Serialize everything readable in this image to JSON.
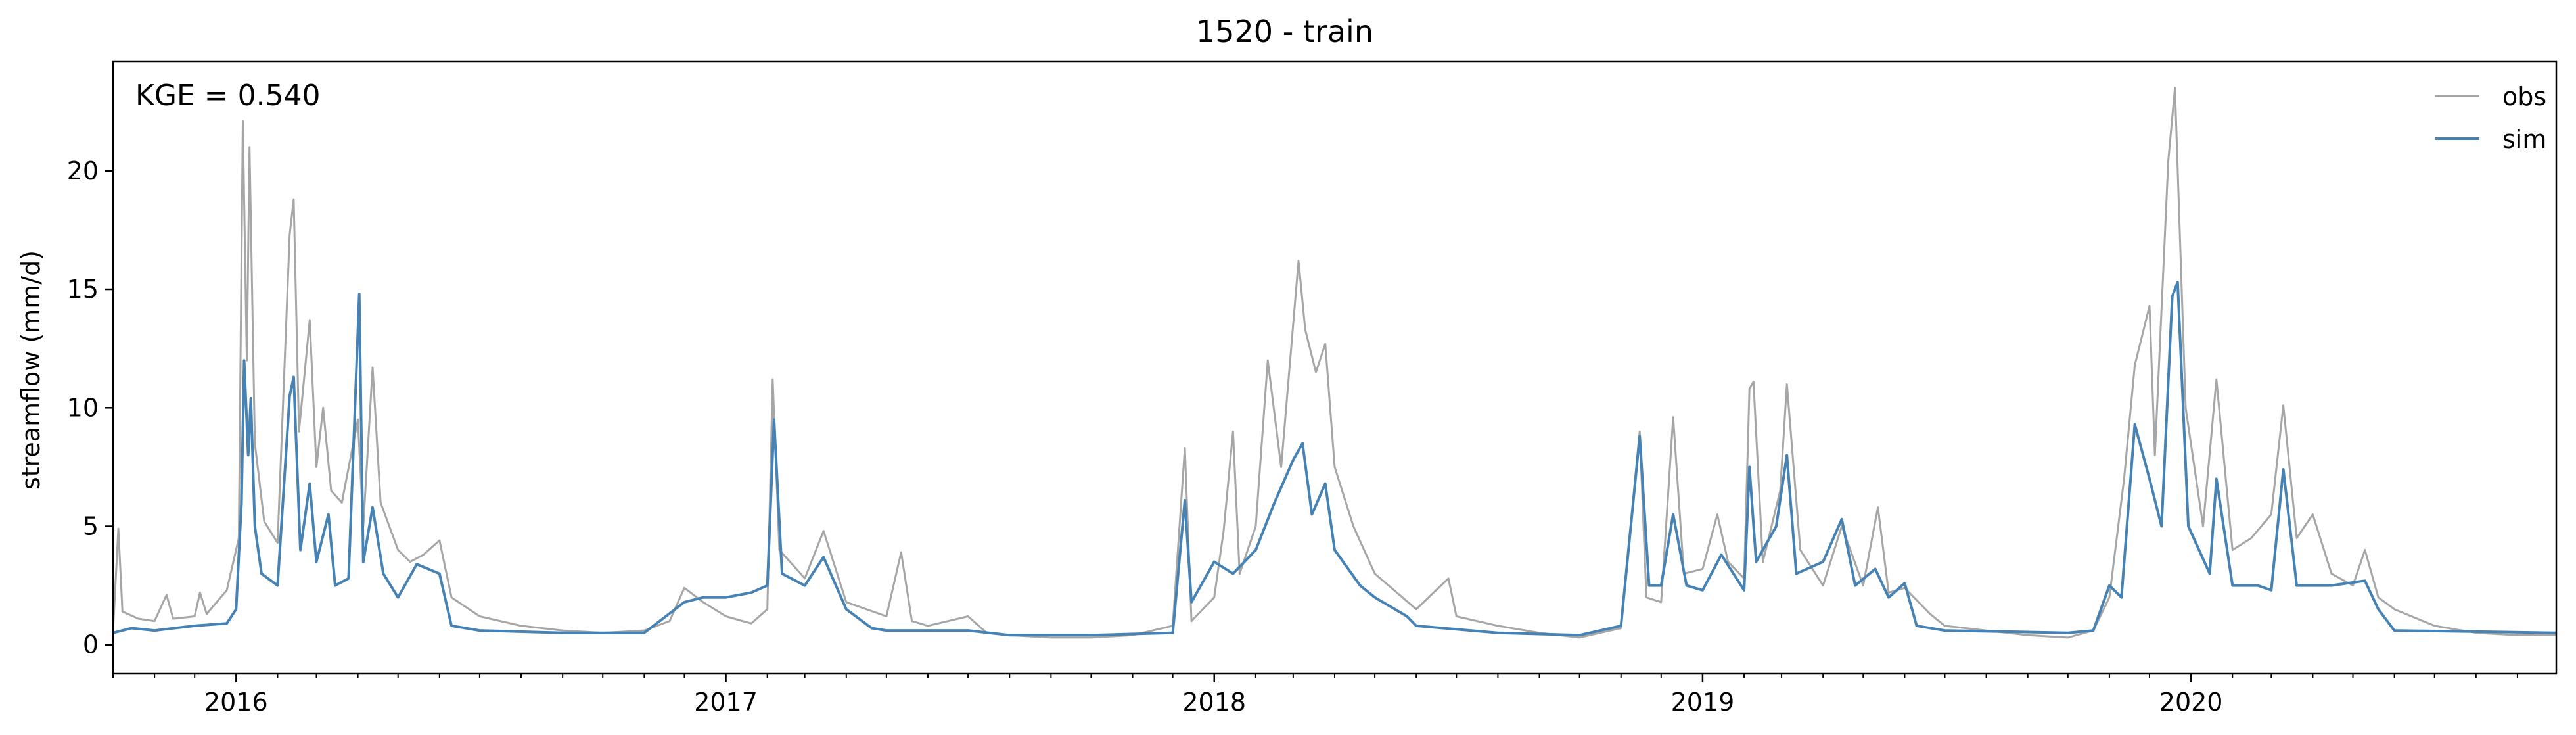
{
  "chart_data": {
    "type": "line",
    "title": "1520 - train",
    "xlabel": "",
    "ylabel": "streamflow (mm/d)",
    "annotation": "KGE = 0.540",
    "legend_position": "top-right",
    "grid": false,
    "xlim": [
      "2015-10-01",
      "2020-09-30"
    ],
    "ylim": [
      -1.2,
      24.6
    ],
    "yticks": [
      0,
      5,
      10,
      15,
      20
    ],
    "xticks": [
      {
        "date": "2016-01-01",
        "label": "2016"
      },
      {
        "date": "2017-01-01",
        "label": "2017"
      },
      {
        "date": "2018-01-01",
        "label": "2018"
      },
      {
        "date": "2019-01-01",
        "label": "2019"
      },
      {
        "date": "2020-01-01",
        "label": "2020"
      }
    ],
    "series": [
      {
        "name": "obs",
        "color": "#a6a6a6",
        "points": [
          [
            "2015-10-01",
            0.6
          ],
          [
            "2015-10-05",
            4.9
          ],
          [
            "2015-10-08",
            1.4
          ],
          [
            "2015-10-20",
            1.1
          ],
          [
            "2015-11-01",
            1.0
          ],
          [
            "2015-11-10",
            2.1
          ],
          [
            "2015-11-15",
            1.1
          ],
          [
            "2015-12-01",
            1.2
          ],
          [
            "2015-12-05",
            2.2
          ],
          [
            "2015-12-10",
            1.3
          ],
          [
            "2015-12-25",
            2.3
          ],
          [
            "2016-01-03",
            4.5
          ],
          [
            "2016-01-06",
            22.1
          ],
          [
            "2016-01-09",
            12.0
          ],
          [
            "2016-01-11",
            21.0
          ],
          [
            "2016-01-15",
            8.5
          ],
          [
            "2016-01-22",
            5.2
          ],
          [
            "2016-02-01",
            4.3
          ],
          [
            "2016-02-10",
            17.3
          ],
          [
            "2016-02-13",
            18.8
          ],
          [
            "2016-02-17",
            9.0
          ],
          [
            "2016-02-25",
            13.7
          ],
          [
            "2016-03-01",
            7.5
          ],
          [
            "2016-03-06",
            10.0
          ],
          [
            "2016-03-12",
            6.5
          ],
          [
            "2016-03-20",
            6.0
          ],
          [
            "2016-04-01",
            9.5
          ],
          [
            "2016-04-05",
            5.0
          ],
          [
            "2016-04-12",
            11.7
          ],
          [
            "2016-04-18",
            6.0
          ],
          [
            "2016-05-01",
            4.0
          ],
          [
            "2016-05-10",
            3.5
          ],
          [
            "2016-05-20",
            3.8
          ],
          [
            "2016-06-01",
            4.4
          ],
          [
            "2016-06-10",
            2.0
          ],
          [
            "2016-07-01",
            1.2
          ],
          [
            "2016-08-01",
            0.8
          ],
          [
            "2016-09-01",
            0.6
          ],
          [
            "2016-10-01",
            0.5
          ],
          [
            "2016-11-01",
            0.6
          ],
          [
            "2016-11-20",
            1.0
          ],
          [
            "2016-12-01",
            2.4
          ],
          [
            "2016-12-15",
            1.8
          ],
          [
            "2017-01-01",
            1.2
          ],
          [
            "2017-01-20",
            0.9
          ],
          [
            "2017-02-01",
            1.5
          ],
          [
            "2017-02-05",
            11.2
          ],
          [
            "2017-02-10",
            4.0
          ],
          [
            "2017-03-01",
            2.8
          ],
          [
            "2017-03-15",
            4.8
          ],
          [
            "2017-04-01",
            1.8
          ],
          [
            "2017-05-01",
            1.2
          ],
          [
            "2017-05-12",
            3.9
          ],
          [
            "2017-05-20",
            1.0
          ],
          [
            "2017-06-01",
            0.8
          ],
          [
            "2017-07-01",
            1.2
          ],
          [
            "2017-07-15",
            0.5
          ],
          [
            "2017-08-01",
            0.4
          ],
          [
            "2017-09-01",
            0.3
          ],
          [
            "2017-10-01",
            0.3
          ],
          [
            "2017-11-01",
            0.4
          ],
          [
            "2017-12-01",
            0.8
          ],
          [
            "2017-12-10",
            8.3
          ],
          [
            "2017-12-15",
            1.0
          ],
          [
            "2018-01-01",
            2.0
          ],
          [
            "2018-01-08",
            4.8
          ],
          [
            "2018-01-15",
            9.0
          ],
          [
            "2018-01-20",
            3.0
          ],
          [
            "2018-02-01",
            5.0
          ],
          [
            "2018-02-10",
            12.0
          ],
          [
            "2018-02-20",
            7.5
          ],
          [
            "2018-03-05",
            16.2
          ],
          [
            "2018-03-10",
            13.3
          ],
          [
            "2018-03-18",
            11.5
          ],
          [
            "2018-03-25",
            12.7
          ],
          [
            "2018-04-01",
            7.5
          ],
          [
            "2018-04-15",
            5.0
          ],
          [
            "2018-05-01",
            3.0
          ],
          [
            "2018-06-01",
            1.5
          ],
          [
            "2018-06-25",
            2.8
          ],
          [
            "2018-07-01",
            1.2
          ],
          [
            "2018-08-01",
            0.8
          ],
          [
            "2018-09-01",
            0.5
          ],
          [
            "2018-10-01",
            0.3
          ],
          [
            "2018-11-01",
            0.7
          ],
          [
            "2018-11-15",
            9.0
          ],
          [
            "2018-11-20",
            2.0
          ],
          [
            "2018-12-01",
            1.8
          ],
          [
            "2018-12-10",
            9.6
          ],
          [
            "2018-12-18",
            3.0
          ],
          [
            "2019-01-01",
            3.2
          ],
          [
            "2019-01-12",
            5.5
          ],
          [
            "2019-01-20",
            3.5
          ],
          [
            "2019-02-01",
            2.8
          ],
          [
            "2019-02-05",
            10.8
          ],
          [
            "2019-02-08",
            11.1
          ],
          [
            "2019-02-15",
            3.5
          ],
          [
            "2019-02-28",
            6.5
          ],
          [
            "2019-03-05",
            11.0
          ],
          [
            "2019-03-15",
            4.0
          ],
          [
            "2019-04-01",
            2.5
          ],
          [
            "2019-04-15",
            5.0
          ],
          [
            "2019-05-01",
            2.5
          ],
          [
            "2019-05-12",
            5.8
          ],
          [
            "2019-05-20",
            2.2
          ],
          [
            "2019-06-01",
            2.4
          ],
          [
            "2019-06-20",
            1.3
          ],
          [
            "2019-07-01",
            0.8
          ],
          [
            "2019-08-01",
            0.6
          ],
          [
            "2019-09-01",
            0.4
          ],
          [
            "2019-10-01",
            0.3
          ],
          [
            "2019-10-20",
            0.6
          ],
          [
            "2019-11-01",
            2.0
          ],
          [
            "2019-11-12",
            7.0
          ],
          [
            "2019-11-20",
            11.8
          ],
          [
            "2019-12-01",
            14.3
          ],
          [
            "2019-12-05",
            8.0
          ],
          [
            "2019-12-15",
            20.4
          ],
          [
            "2019-12-20",
            23.5
          ],
          [
            "2019-12-28",
            10.0
          ],
          [
            "2020-01-10",
            5.0
          ],
          [
            "2020-01-20",
            11.2
          ],
          [
            "2020-02-01",
            4.0
          ],
          [
            "2020-02-15",
            4.5
          ],
          [
            "2020-03-01",
            5.5
          ],
          [
            "2020-03-10",
            10.1
          ],
          [
            "2020-03-20",
            4.5
          ],
          [
            "2020-04-01",
            5.5
          ],
          [
            "2020-04-15",
            3.0
          ],
          [
            "2020-05-01",
            2.5
          ],
          [
            "2020-05-10",
            4.0
          ],
          [
            "2020-05-20",
            2.0
          ],
          [
            "2020-06-01",
            1.5
          ],
          [
            "2020-07-01",
            0.8
          ],
          [
            "2020-08-01",
            0.5
          ],
          [
            "2020-09-01",
            0.4
          ],
          [
            "2020-09-30",
            0.4
          ]
        ]
      },
      {
        "name": "sim",
        "color": "#4682b4",
        "points": [
          [
            "2015-10-01",
            0.5
          ],
          [
            "2015-10-15",
            0.7
          ],
          [
            "2015-11-01",
            0.6
          ],
          [
            "2015-12-01",
            0.8
          ],
          [
            "2015-12-25",
            0.9
          ],
          [
            "2016-01-01",
            1.5
          ],
          [
            "2016-01-05",
            6.0
          ],
          [
            "2016-01-07",
            12.0
          ],
          [
            "2016-01-10",
            8.0
          ],
          [
            "2016-01-12",
            10.4
          ],
          [
            "2016-01-15",
            5.0
          ],
          [
            "2016-01-20",
            3.0
          ],
          [
            "2016-02-01",
            2.5
          ],
          [
            "2016-02-10",
            10.5
          ],
          [
            "2016-02-13",
            11.3
          ],
          [
            "2016-02-18",
            4.0
          ],
          [
            "2016-02-25",
            6.8
          ],
          [
            "2016-03-01",
            3.5
          ],
          [
            "2016-03-10",
            5.5
          ],
          [
            "2016-03-15",
            2.5
          ],
          [
            "2016-03-25",
            2.8
          ],
          [
            "2016-04-02",
            14.8
          ],
          [
            "2016-04-05",
            3.5
          ],
          [
            "2016-04-12",
            5.8
          ],
          [
            "2016-04-20",
            3.0
          ],
          [
            "2016-05-01",
            2.0
          ],
          [
            "2016-05-15",
            3.4
          ],
          [
            "2016-06-01",
            3.0
          ],
          [
            "2016-06-10",
            0.8
          ],
          [
            "2016-07-01",
            0.6
          ],
          [
            "2016-09-01",
            0.5
          ],
          [
            "2016-10-01",
            0.5
          ],
          [
            "2016-11-01",
            0.5
          ],
          [
            "2016-12-01",
            1.8
          ],
          [
            "2016-12-15",
            2.0
          ],
          [
            "2017-01-01",
            2.0
          ],
          [
            "2017-01-20",
            2.2
          ],
          [
            "2017-02-01",
            2.5
          ],
          [
            "2017-02-06",
            9.5
          ],
          [
            "2017-02-12",
            3.0
          ],
          [
            "2017-03-01",
            2.5
          ],
          [
            "2017-03-15",
            3.7
          ],
          [
            "2017-04-01",
            1.5
          ],
          [
            "2017-04-20",
            0.7
          ],
          [
            "2017-05-01",
            0.6
          ],
          [
            "2017-07-01",
            0.6
          ],
          [
            "2017-08-01",
            0.4
          ],
          [
            "2017-10-01",
            0.4
          ],
          [
            "2017-12-01",
            0.5
          ],
          [
            "2017-12-10",
            6.1
          ],
          [
            "2017-12-15",
            1.8
          ],
          [
            "2018-01-01",
            3.5
          ],
          [
            "2018-01-15",
            3.0
          ],
          [
            "2018-02-01",
            4.0
          ],
          [
            "2018-02-15",
            6.0
          ],
          [
            "2018-03-01",
            7.8
          ],
          [
            "2018-03-08",
            8.5
          ],
          [
            "2018-03-15",
            5.5
          ],
          [
            "2018-03-25",
            6.8
          ],
          [
            "2018-04-01",
            4.0
          ],
          [
            "2018-04-20",
            2.5
          ],
          [
            "2018-05-01",
            2.0
          ],
          [
            "2018-05-25",
            1.2
          ],
          [
            "2018-06-01",
            0.8
          ],
          [
            "2018-08-01",
            0.5
          ],
          [
            "2018-10-01",
            0.4
          ],
          [
            "2018-11-01",
            0.8
          ],
          [
            "2018-11-15",
            8.8
          ],
          [
            "2018-11-22",
            2.5
          ],
          [
            "2018-12-01",
            2.5
          ],
          [
            "2018-12-10",
            5.5
          ],
          [
            "2018-12-20",
            2.5
          ],
          [
            "2019-01-01",
            2.3
          ],
          [
            "2019-01-15",
            3.8
          ],
          [
            "2019-02-01",
            2.3
          ],
          [
            "2019-02-05",
            7.5
          ],
          [
            "2019-02-10",
            3.5
          ],
          [
            "2019-02-25",
            5.0
          ],
          [
            "2019-03-05",
            8.0
          ],
          [
            "2019-03-12",
            3.0
          ],
          [
            "2019-04-01",
            3.5
          ],
          [
            "2019-04-15",
            5.3
          ],
          [
            "2019-04-25",
            2.5
          ],
          [
            "2019-05-10",
            3.2
          ],
          [
            "2019-05-20",
            2.0
          ],
          [
            "2019-06-01",
            2.6
          ],
          [
            "2019-06-10",
            0.8
          ],
          [
            "2019-07-01",
            0.6
          ],
          [
            "2019-10-01",
            0.5
          ],
          [
            "2019-10-20",
            0.6
          ],
          [
            "2019-11-01",
            2.5
          ],
          [
            "2019-11-10",
            2.0
          ],
          [
            "2019-11-20",
            9.3
          ],
          [
            "2019-12-01",
            7.0
          ],
          [
            "2019-12-10",
            5.0
          ],
          [
            "2019-12-18",
            14.7
          ],
          [
            "2019-12-22",
            15.3
          ],
          [
            "2019-12-30",
            5.0
          ],
          [
            "2020-01-15",
            3.0
          ],
          [
            "2020-01-20",
            7.0
          ],
          [
            "2020-02-01",
            2.5
          ],
          [
            "2020-02-20",
            2.5
          ],
          [
            "2020-03-01",
            2.3
          ],
          [
            "2020-03-10",
            7.4
          ],
          [
            "2020-03-20",
            2.5
          ],
          [
            "2020-04-15",
            2.5
          ],
          [
            "2020-05-10",
            2.7
          ],
          [
            "2020-05-20",
            1.5
          ],
          [
            "2020-06-01",
            0.6
          ],
          [
            "2020-09-30",
            0.5
          ]
        ]
      }
    ]
  }
}
